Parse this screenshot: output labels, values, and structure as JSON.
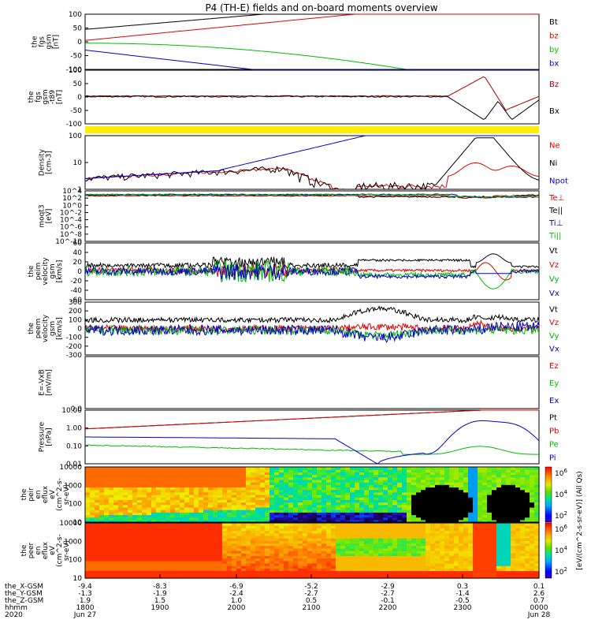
{
  "title": "P4 (TH-E) fields and on-board moments overview",
  "x_ticks": [
    "1800",
    "1900",
    "2000",
    "2100",
    "2200",
    "2300",
    "0000"
  ],
  "x_rows": [
    {
      "label": "the_X-GSM",
      "values": [
        "-9.4",
        "-8.3",
        "-6.9",
        "-5.2",
        "-2.9",
        "0.3",
        "0.1"
      ]
    },
    {
      "label": "the_Y-GSM",
      "values": [
        "-1.3",
        "-1.9",
        "-2.4",
        "-2.7",
        "-2.7",
        "-1.4",
        "2.6"
      ]
    },
    {
      "label": "the_Z-GSM",
      "values": [
        "1.9",
        "1.5",
        "1.0",
        "0.5",
        "-0.1",
        "-0.5",
        "0.7"
      ]
    },
    {
      "label": "hhmm",
      "values": [
        "1800",
        "1900",
        "2000",
        "2100",
        "2200",
        "2300",
        "0000"
      ]
    },
    {
      "label": "2020",
      "values": [
        "Jun 27",
        "",
        "",
        "",
        "",
        "",
        "Jun 28"
      ]
    }
  ],
  "colorbar_label": "[eV/(cm^2-s-sr-eV)] (All Qs)",
  "colorbar_ticks": [
    "10^6",
    "10^4",
    "10^2"
  ],
  "chart_data": [
    {
      "type": "line",
      "id": "fgs_gsm",
      "ylabel": [
        "the",
        "fgs",
        "gsm",
        "[nT]"
      ],
      "ylim": [
        -100,
        100
      ],
      "yticks": [
        "100",
        "50",
        "0",
        "-50",
        "-100"
      ],
      "series": [
        {
          "name": "Bt",
          "color": "#000000"
        },
        {
          "name": "bz",
          "color": "#dd0000"
        },
        {
          "name": "by",
          "color": "#00bb00"
        },
        {
          "name": "bx",
          "color": "#0000cc"
        }
      ]
    },
    {
      "type": "line",
      "id": "fgs_gsm_t89",
      "ylabel": [
        "the",
        "fgs",
        "gsm",
        "-t89",
        "[nT]"
      ],
      "ylim": [
        -130,
        130
      ],
      "yticks": [
        "100",
        "50",
        "0",
        "-50",
        "-100"
      ],
      "series": [
        {
          "name": "Bz",
          "color": "#aa0000"
        },
        {
          "name": "Bx",
          "color": "#000000"
        }
      ]
    },
    {
      "type": "line",
      "id": "density",
      "ylabel": [
        "Density",
        "[cm-3]"
      ],
      "scale": "log",
      "ylim": [
        0.2,
        200
      ],
      "yticks": [
        "100",
        "10",
        "1"
      ],
      "series": [
        {
          "name": "Ne",
          "color": "#dd0000"
        },
        {
          "name": "Ni",
          "color": "#000000"
        },
        {
          "name": "Npot",
          "color": "#0000cc"
        }
      ]
    },
    {
      "type": "line",
      "id": "temperature",
      "ylabel": [
        "moqt3",
        "[eV]"
      ],
      "scale": "log",
      "yticks": [
        "10^4",
        "10^2",
        "10^0",
        "10^-2",
        "10^-4",
        "10^-6",
        "10^-8",
        "10^-10"
      ],
      "series": [
        {
          "name": "Te⊥",
          "color": "#dd0000"
        },
        {
          "name": "Te||",
          "color": "#000000"
        },
        {
          "name": "Ti⊥",
          "color": "#0000cc"
        },
        {
          "name": "Ti||",
          "color": "#00bb00"
        }
      ]
    },
    {
      "type": "line",
      "id": "peim_velocity",
      "ylabel": [
        "the",
        "peim",
        "velocity",
        "gsm",
        "[km/s]"
      ],
      "ylim": [
        -65,
        65
      ],
      "yticks": [
        "60",
        "40",
        "20",
        "0",
        "-20",
        "-40",
        "-60"
      ],
      "series": [
        {
          "name": "Vt",
          "color": "#000000"
        },
        {
          "name": "Vz",
          "color": "#dd0000"
        },
        {
          "name": "Vy",
          "color": "#00bb00"
        },
        {
          "name": "Vx",
          "color": "#0000cc"
        }
      ]
    },
    {
      "type": "line",
      "id": "peem_velocity",
      "ylabel": [
        "the",
        "peem",
        "velocity",
        "gsm",
        "[km/s]"
      ],
      "ylim": [
        -310,
        310
      ],
      "yticks": [
        "300",
        "200",
        "100",
        "0",
        "-100",
        "-200",
        "-300"
      ],
      "series": [
        {
          "name": "Vt",
          "color": "#000000"
        },
        {
          "name": "Vz",
          "color": "#dd0000"
        },
        {
          "name": "Vy",
          "color": "#00bb00"
        },
        {
          "name": "Vx",
          "color": "#0000cc"
        }
      ]
    },
    {
      "type": "line",
      "id": "efield",
      "ylabel": [
        "E=-VxB",
        "[mV/m]"
      ],
      "ylim": [
        0,
        1
      ],
      "yticks": [
        "0.0"
      ],
      "series": [
        {
          "name": "Ez",
          "color": "#dd0000"
        },
        {
          "name": "Ey",
          "color": "#00bb00"
        },
        {
          "name": "Ex",
          "color": "#0000cc"
        }
      ]
    },
    {
      "type": "line",
      "id": "pressure",
      "ylabel": [
        "Pressure",
        "[nPa]"
      ],
      "scale": "log",
      "ylim": [
        0.002,
        20
      ],
      "yticks": [
        "10.00",
        "1.00",
        "0.10",
        "0.01"
      ],
      "series": [
        {
          "name": "Pt",
          "color": "#000000"
        },
        {
          "name": "Pb",
          "color": "#dd0000"
        },
        {
          "name": "Pe",
          "color": "#00bb00"
        },
        {
          "name": "Pi",
          "color": "#0000cc"
        }
      ]
    },
    {
      "type": "heatmap",
      "id": "peir_eflux",
      "ylabel": [
        "the",
        "peir",
        "en",
        "eflux",
        "eV",
        "(cm^2-s-",
        "sr-eV)"
      ],
      "scale": "log",
      "ylim": [
        5,
        25000
      ],
      "yticks": [
        "10000",
        "1000",
        "100",
        "10"
      ]
    },
    {
      "type": "heatmap",
      "id": "peer_eflux",
      "ylabel": [
        "the",
        "peer",
        "en",
        "eflux",
        "eV",
        "(cm^2-s-",
        "sr-eV)"
      ],
      "scale": "log",
      "ylim": [
        5,
        25000
      ],
      "yticks": [
        "10000",
        "1000",
        "100",
        "10"
      ]
    }
  ]
}
